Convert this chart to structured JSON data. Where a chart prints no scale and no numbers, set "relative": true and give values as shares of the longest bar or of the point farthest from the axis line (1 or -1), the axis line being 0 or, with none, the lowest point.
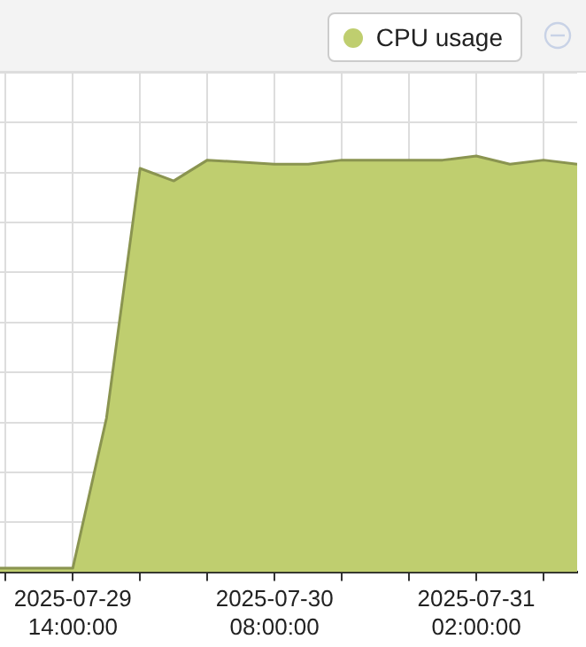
{
  "chart_data": {
    "type": "area",
    "relative": true,
    "legend": "top right",
    "grid": true,
    "x": [
      "2025-07-29T07:30",
      "2025-07-29T14:00",
      "2025-07-29T17:00",
      "2025-07-29T20:00",
      "2025-07-29T23:00",
      "2025-07-30T02:00",
      "2025-07-30T08:00",
      "2025-07-30T11:00",
      "2025-07-30T14:00",
      "2025-07-30T20:00",
      "2025-07-30T23:00",
      "2025-07-31T02:00",
      "2025-07-31T05:00",
      "2025-07-31T08:00",
      "2025-07-31T11:00"
    ],
    "series": [
      {
        "name": "CPU usage",
        "color": "#bfce6f",
        "values": [
          0.01,
          0.01,
          0.37,
          0.97,
          0.94,
          0.99,
          0.98,
          0.98,
          0.99,
          0.99,
          0.99,
          1,
          0.98,
          0.99,
          0.98
        ]
      }
    ],
    "xlim": [
      "2025-07-29T07:30",
      "2025-07-31T11:00"
    ],
    "xticks": [
      {
        "value": "2025-07-29T08:00",
        "label": null
      },
      {
        "value": "2025-07-29T14:00",
        "label": "2025-07-29 14:00:00"
      },
      {
        "value": "2025-07-29T20:00",
        "label": null
      },
      {
        "value": "2025-07-30T02:00",
        "label": null
      },
      {
        "value": "2025-07-30T08:00",
        "label": "2025-07-30 08:00:00"
      },
      {
        "value": "2025-07-30T14:00",
        "label": null
      },
      {
        "value": "2025-07-30T20:00",
        "label": null
      },
      {
        "value": "2025-07-31T02:00",
        "label": "2025-07-31 02:00:00"
      },
      {
        "value": "2025-07-31T08:00",
        "label": null
      }
    ]
  }
}
